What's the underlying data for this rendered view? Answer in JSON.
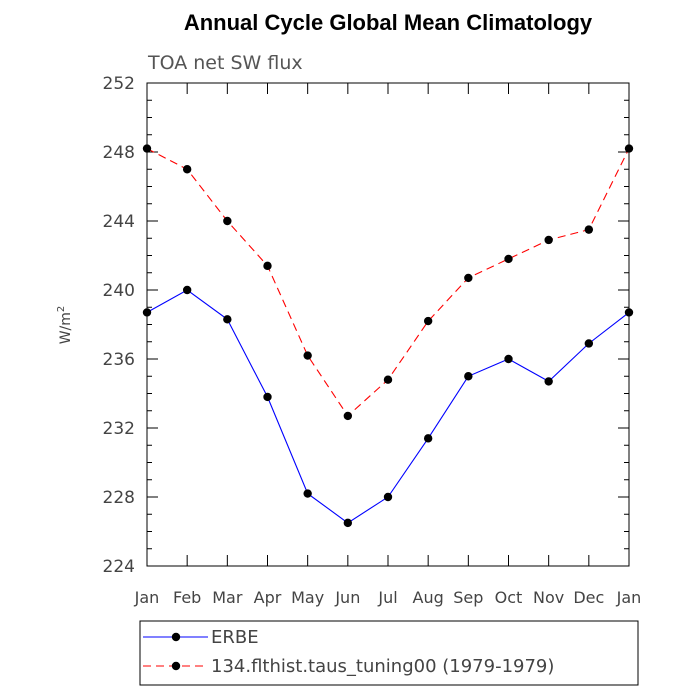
{
  "chart_data": {
    "type": "line",
    "title": "Annual Cycle Global Mean Climatology",
    "subtitle": "TOA net SW flux",
    "ylabel_base": "W/m",
    "ylabel_sup": "2",
    "xlabel": "",
    "ylim": [
      224,
      252
    ],
    "yticks": [
      "224",
      "228",
      "232",
      "236",
      "240",
      "244",
      "248",
      "252"
    ],
    "categories": [
      "Jan",
      "Feb",
      "Mar",
      "Apr",
      "May",
      "Jun",
      "Jul",
      "Aug",
      "Sep",
      "Oct",
      "Nov",
      "Dec",
      "Jan"
    ],
    "grid": false,
    "legend_position": "bottom",
    "series": [
      {
        "name": "ERBE",
        "color": "#0000ff",
        "line_style": "solid",
        "marker": "filled-circle",
        "values": [
          238.7,
          240.0,
          238.3,
          233.8,
          228.2,
          226.5,
          228.0,
          231.4,
          235.0,
          236.0,
          234.7,
          236.9,
          238.7
        ]
      },
      {
        "name": "134.flthist.taus_tuning00 (1979-1979)",
        "color": "#ff0000",
        "line_style": "dashed",
        "marker": "filled-circle",
        "values": [
          248.2,
          247.0,
          244.0,
          241.4,
          236.2,
          232.7,
          234.8,
          238.2,
          240.7,
          241.8,
          242.9,
          243.5,
          248.2
        ]
      }
    ]
  }
}
